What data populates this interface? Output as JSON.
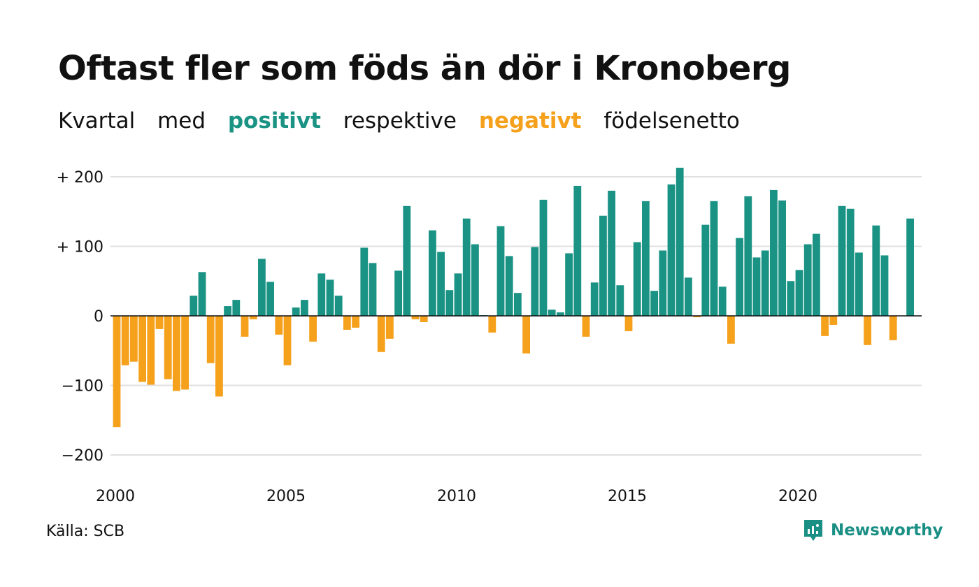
{
  "title": "Oftast fler som föds än dör i Kronoberg",
  "subtitle": {
    "w1": "Kvartal",
    "w2": "med",
    "positive_word": "positivt",
    "w4": "respektive",
    "negative_word": "negativt",
    "w6": "födelsenetto"
  },
  "source": "Källa: SCB",
  "brand": "Newsworthy",
  "colors": {
    "positive": "#1a9384",
    "negative": "#f5a11c",
    "grid": "#e0e0e0",
    "baseline": "#111111",
    "brand": "#1a8f84"
  },
  "chart_data": {
    "type": "bar",
    "x_start": "2000 Q1",
    "frequency": "quarterly",
    "ylim": [
      -220,
      220
    ],
    "yticks": [
      {
        "value": 200,
        "label": "+ 200"
      },
      {
        "value": 100,
        "label": "+ 100"
      },
      {
        "value": 0,
        "label": "0"
      },
      {
        "value": -100,
        "label": "−100"
      },
      {
        "value": -200,
        "label": "−200"
      }
    ],
    "xticks": [
      "2000",
      "2005",
      "2010",
      "2015",
      "2020"
    ],
    "grid": true,
    "values": [
      -160,
      -71,
      -66,
      -95,
      -99,
      -19,
      -91,
      -108,
      -106,
      29,
      63,
      -68,
      -116,
      14,
      23,
      -30,
      -5,
      82,
      49,
      -27,
      -71,
      12,
      23,
      -37,
      61,
      52,
      29,
      -20,
      -17,
      98,
      76,
      -52,
      -33,
      65,
      158,
      -5,
      -9,
      123,
      92,
      37,
      61,
      140,
      103,
      1,
      -24,
      129,
      86,
      33,
      -54,
      99,
      167,
      9,
      5,
      90,
      187,
      -30,
      48,
      144,
      180,
      44,
      -22,
      106,
      165,
      36,
      94,
      189,
      213,
      55,
      -2,
      131,
      165,
      42,
      -40,
      112,
      172,
      84,
      94,
      181,
      166,
      50,
      66,
      103,
      118,
      -29,
      -13,
      158,
      154,
      91,
      -42,
      130,
      87,
      -35,
      0,
      140
    ]
  }
}
